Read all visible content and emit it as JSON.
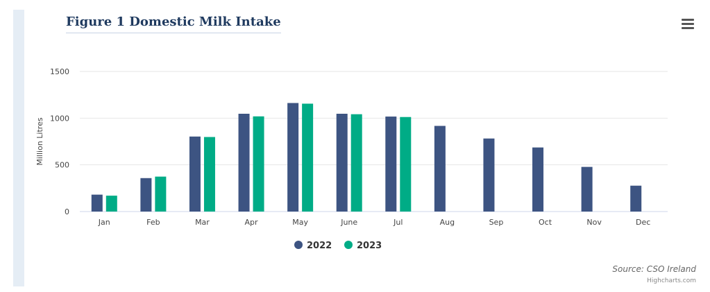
{
  "title": "Figure 1 Domestic Milk Intake",
  "source": "Source: CSO Ireland",
  "credits": "Highcharts.com",
  "colors": {
    "series_2022": "#3d5482",
    "series_2023": "#00ac86"
  },
  "icons": {
    "menu": "hamburger-menu-icon"
  },
  "chart_data": {
    "type": "bar",
    "categories": [
      "Jan",
      "Feb",
      "Mar",
      "Apr",
      "May",
      "June",
      "Jul",
      "Aug",
      "Sep",
      "Oct",
      "Nov",
      "Dec"
    ],
    "series": [
      {
        "name": "2022",
        "values": [
          181,
          358,
          803,
          1047,
          1162,
          1047,
          1017,
          917,
          782,
          686,
          478,
          277
        ]
      },
      {
        "name": "2023",
        "values": [
          170,
          374,
          798,
          1019,
          1155,
          1042,
          1012,
          null,
          null,
          null,
          null,
          null
        ]
      }
    ],
    "ylabel": "Million Litres",
    "xlabel": "",
    "ylim": [
      0,
      1500
    ],
    "yticks": [
      "0",
      "500",
      "1000",
      "1500"
    ],
    "grid": true,
    "legend": "bottom-center"
  }
}
